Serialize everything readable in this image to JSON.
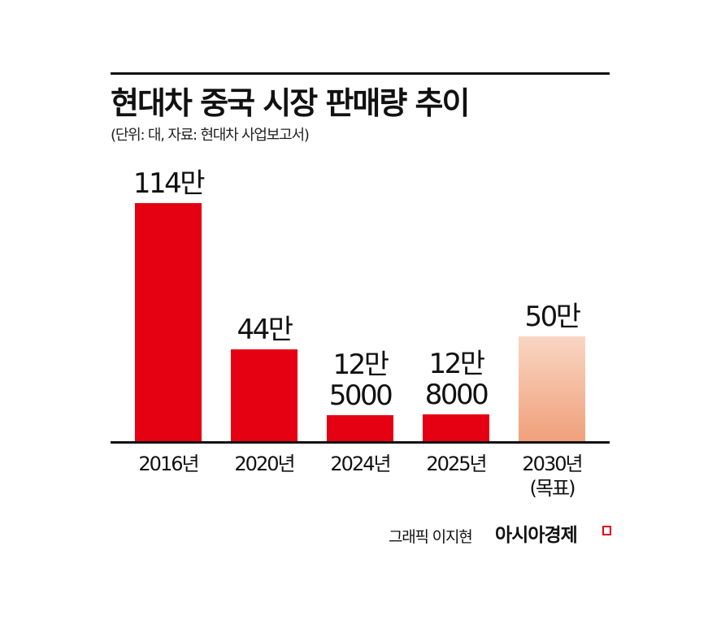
{
  "header": {
    "title": "현대차 중국 시장 판매량 추이",
    "subtitle": "(단위: 대, 자료: 현대차 사업보고서)"
  },
  "bars": [
    {
      "year_label": "2016년",
      "sub_label": "",
      "value_label_1": "114만",
      "value_label_2": "",
      "value": 1140000,
      "type": "actual"
    },
    {
      "year_label": "2020년",
      "sub_label": "",
      "value_label_1": "44만",
      "value_label_2": "",
      "value": 440000,
      "type": "actual"
    },
    {
      "year_label": "2024년",
      "sub_label": "",
      "value_label_1": "12만",
      "value_label_2": "5000",
      "value": 125000,
      "type": "actual"
    },
    {
      "year_label": "2025년",
      "sub_label": "",
      "value_label_1": "12만",
      "value_label_2": "8000",
      "value": 128000,
      "type": "actual"
    },
    {
      "year_label": "2030년",
      "sub_label": "(목표)",
      "value_label_1": "50만",
      "value_label_2": "",
      "value": 500000,
      "type": "target"
    }
  ],
  "colors": {
    "actual": "#e50012",
    "target_top": "#f9d6c3",
    "target_bottom": "#f0a07a"
  },
  "footer": {
    "credit": "그래픽 이지현",
    "brand": "아시아경제"
  },
  "chart_data": {
    "type": "bar",
    "title": "현대차 중국 시장 판매량 추이",
    "subtitle": "(단위: 대, 자료: 현대차 사업보고서)",
    "categories": [
      "2016년",
      "2020년",
      "2024년",
      "2025년",
      "2030년(목표)"
    ],
    "values": [
      1140000,
      440000,
      125000,
      128000,
      500000
    ],
    "data_labels": [
      "114만",
      "44만",
      "12만 5000",
      "12만 8000",
      "50만"
    ],
    "xlabel": "",
    "ylabel": "",
    "unit": "대",
    "grid": false,
    "legend": null,
    "annotations": [
      "2030년 bar is a target (목표), shown with light orange gradient"
    ]
  }
}
